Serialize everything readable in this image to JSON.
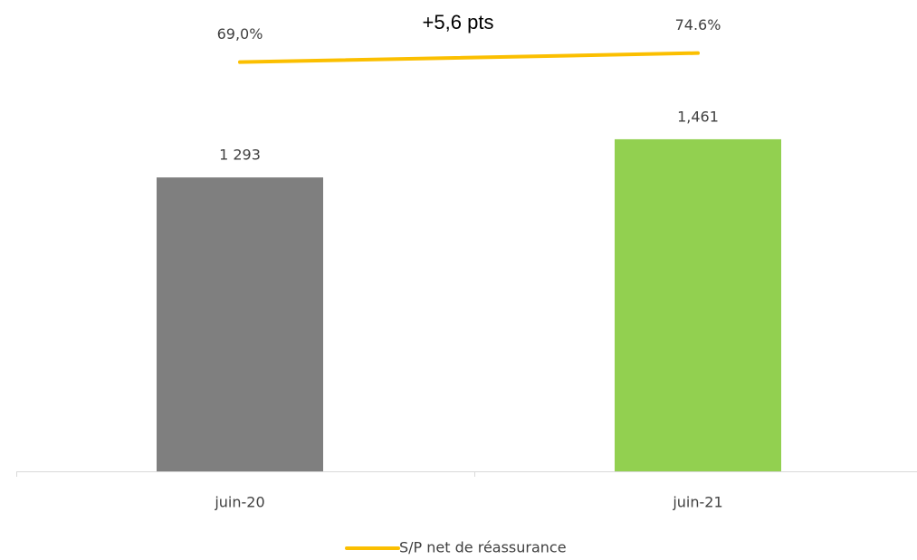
{
  "chart_data": {
    "type": "bar",
    "annotation": "+5,6 pts",
    "categories": [
      "juin-20",
      "juin-21"
    ],
    "ylim": [
      0,
      1600
    ],
    "y2lim": [
      0,
      80
    ],
    "series": [
      {
        "type": "bar",
        "colors": [
          "#7f7f7f",
          "#92d050"
        ],
        "values": [
          1293,
          1461
        ],
        "value_labels": [
          "1 293",
          "1,461"
        ]
      },
      {
        "type": "line",
        "name": "S/P net de réassurance",
        "color": "#fbbf00",
        "axis": "y2",
        "values": [
          69.0,
          74.6
        ],
        "value_labels": [
          "69,0%",
          "74.6%"
        ]
      }
    ],
    "legend": "bottom"
  }
}
